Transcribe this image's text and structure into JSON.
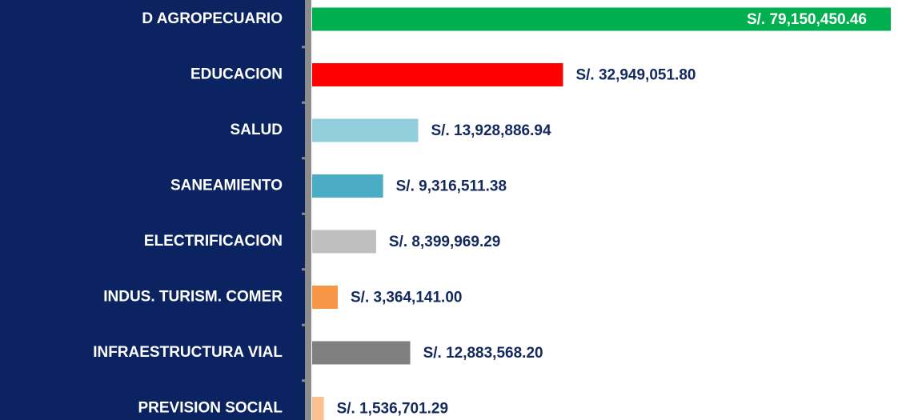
{
  "chart_data": {
    "type": "bar",
    "orientation": "horizontal",
    "categories": [
      "D AGROPECUARIO",
      "EDUCACION",
      "SALUD",
      "SANEAMIENTO",
      "ELECTRIFICACION",
      "INDUS. TURISM. COMER",
      "INFRAESTRUCTURA VIAL",
      "PREVISION SOCIAL"
    ],
    "values": [
      79150450.46,
      32949051.8,
      13928886.94,
      9316511.38,
      8399969.29,
      3364141.0,
      12883568.2,
      1536701.29
    ],
    "value_labels": [
      "S/. 79,150,450.46",
      "S/. 32,949,051.80",
      "S/. 13,928,886.94",
      "S/. 9,316,511.38",
      "S/. 8,399,969.29",
      "S/. 3,364,141.00",
      "S/. 12,883,568.20",
      "S/. 1,536,701.29"
    ],
    "colors": [
      "#00b050",
      "#ff0000",
      "#92cddc",
      "#4bacc6",
      "#bfbfbf",
      "#f79646",
      "#808080",
      "#fac090"
    ],
    "xlim": [
      0,
      76000000
    ]
  }
}
